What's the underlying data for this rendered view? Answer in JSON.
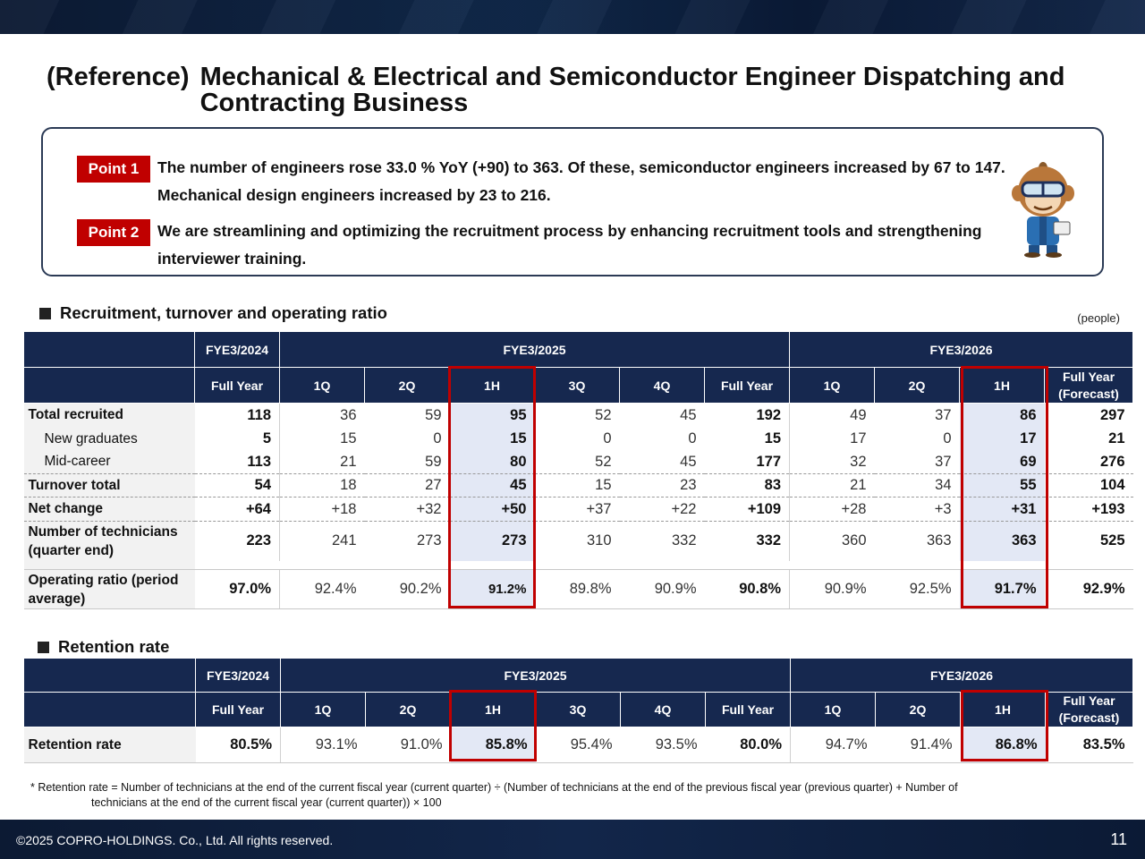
{
  "title": {
    "reference": "(Reference)",
    "main": "Mechanical & Electrical and Semiconductor Engineer Dispatching and Contracting Business"
  },
  "points": [
    {
      "badge": "Point 1",
      "text": "The number of engineers rose 33.0 % YoY (+90) to 363. Of these, semiconductor engineers increased by 67 to 147. Mechanical design engineers increased by 23 to 216."
    },
    {
      "badge": "Point 2",
      "text": "We are streamlining and optimizing the recruitment process by enhancing recruitment tools and strengthening interviewer training."
    }
  ],
  "colors": {
    "navy": "#16284f",
    "accent_red": "#c00000",
    "highlight": "#e3e8f5"
  },
  "recruit": {
    "heading": "Recruitment, turnover and operating ratio",
    "unit": "(people)",
    "groups": [
      "FYE3/2024",
      "FYE3/2025",
      "FYE3/2026"
    ],
    "cols": [
      "Full Year",
      "1Q",
      "2Q",
      "1H",
      "3Q",
      "4Q",
      "Full Year",
      "1Q",
      "2Q",
      "1H",
      "Full Year (Forecast)"
    ],
    "rows": [
      {
        "label": "Total recruited",
        "values": [
          "118",
          "36",
          "59",
          "95",
          "52",
          "45",
          "192",
          "49",
          "37",
          "86",
          "297"
        ]
      },
      {
        "label": "New graduates",
        "values": [
          "5",
          "15",
          "0",
          "15",
          "0",
          "0",
          "15",
          "17",
          "0",
          "17",
          "21"
        ]
      },
      {
        "label": "Mid-career",
        "values": [
          "113",
          "21",
          "59",
          "80",
          "52",
          "45",
          "177",
          "32",
          "37",
          "69",
          "276"
        ]
      },
      {
        "label": "Turnover total",
        "values": [
          "54",
          "18",
          "27",
          "45",
          "15",
          "23",
          "83",
          "21",
          "34",
          "55",
          "104"
        ]
      },
      {
        "label": "Net change",
        "values": [
          "+64",
          "+18",
          "+32",
          "+50",
          "+37",
          "+22",
          "+109",
          "+28",
          "+3",
          "+31",
          "+193"
        ]
      },
      {
        "label": "Number of technicians (quarter end)",
        "values": [
          "223",
          "241",
          "273",
          "273",
          "310",
          "332",
          "332",
          "360",
          "363",
          "363",
          "525"
        ]
      },
      {
        "label": "Operating ratio (period average)",
        "values": [
          "97.0%",
          "92.4%",
          "90.2%",
          "91.2%",
          "89.8%",
          "90.9%",
          "90.8%",
          "90.9%",
          "92.5%",
          "91.7%",
          "92.9%"
        ]
      }
    ]
  },
  "retention": {
    "heading": "Retention rate",
    "groups": [
      "FYE3/2024",
      "FYE3/2025",
      "FYE3/2026"
    ],
    "cols": [
      "Full Year",
      "1Q",
      "2Q",
      "1H",
      "3Q",
      "4Q",
      "Full Year",
      "1Q",
      "2Q",
      "1H",
      "Full Year (Forecast)"
    ],
    "rows": [
      {
        "label": "Retention rate",
        "values": [
          "80.5%",
          "93.1%",
          "91.0%",
          "85.8%",
          "95.4%",
          "93.5%",
          "80.0%",
          "94.7%",
          "91.4%",
          "86.8%",
          "83.5%"
        ]
      }
    ]
  },
  "footnote": {
    "line1": "* Retention rate = Number of technicians at the end of the current fiscal year (current quarter) ÷ (Number of technicians at the end of the previous fiscal year (previous quarter) + Number of",
    "line2": "technicians at the end of the current fiscal year (current quarter)) × 100"
  },
  "footer": {
    "copyright": "©2025 COPRO-HOLDINGS. Co., Ltd. All rights reserved.",
    "page": "11"
  }
}
